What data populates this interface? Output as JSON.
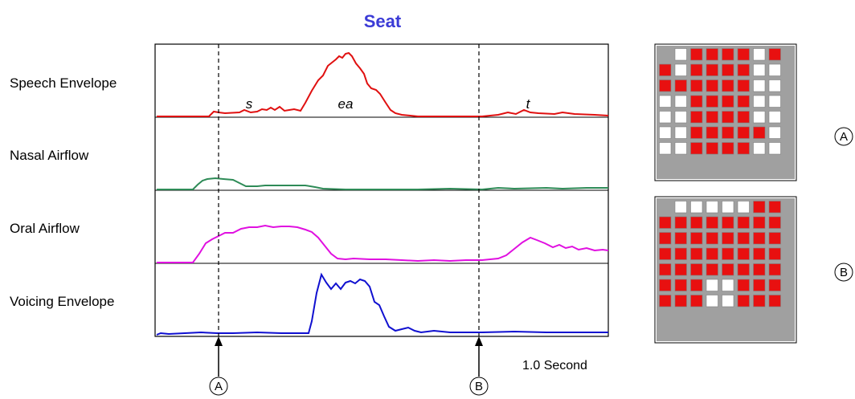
{
  "title": "Seat",
  "traces": [
    {
      "label": "Speech Envelope",
      "color": "#e01010"
    },
    {
      "label": "Nasal Airflow",
      "color": "#2e8b57"
    },
    {
      "label": "Oral Airflow",
      "color": "#e010e0"
    },
    {
      "label": "Voicing Envelope",
      "color": "#1010d0"
    }
  ],
  "phonemes": [
    "s",
    "ea",
    "t"
  ],
  "timescale_label": "1.0 Second",
  "markers": [
    "A",
    "B"
  ],
  "grid_colors": {
    "on": "#e81010",
    "off": "#ffffff",
    "background": "#a0a0a0"
  },
  "contact_grids": [
    {
      "marker": "A",
      "rows": [
        "0111101",
        "10111100",
        "11111100",
        "00111100",
        "00111100",
        "00111110",
        "00111100"
      ]
    },
    {
      "marker": "B",
      "rows": [
        "0000011",
        "11111111",
        "11111111",
        "11111111",
        "11111111",
        "11100111",
        "11100111"
      ]
    }
  ]
}
